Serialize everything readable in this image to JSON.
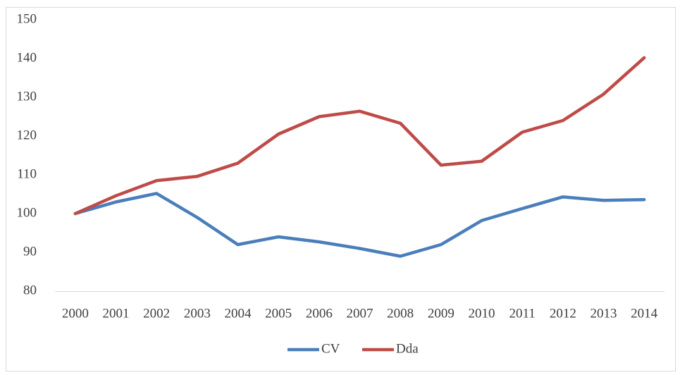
{
  "chart_data": {
    "type": "line",
    "categories": [
      "2000",
      "2001",
      "2002",
      "2003",
      "2004",
      "2005",
      "2006",
      "2007",
      "2008",
      "2009",
      "2010",
      "2011",
      "2012",
      "2013",
      "2014"
    ],
    "series": [
      {
        "name": "CV",
        "color": "#4a7ebb",
        "values": [
          100,
          103,
          105.2,
          99,
          92,
          94,
          92.7,
          91,
          89,
          92,
          98.2,
          101.3,
          104.3,
          103.4,
          103.6
        ]
      },
      {
        "name": "Dda",
        "color": "#be4b48",
        "values": [
          100,
          104.6,
          108.5,
          109.6,
          113,
          120.5,
          125,
          126.4,
          123.3,
          112.5,
          113.5,
          121,
          124,
          130.8,
          140.2
        ]
      }
    ],
    "ylim": [
      80,
      150
    ],
    "yticks": [
      80,
      90,
      100,
      110,
      120,
      130,
      140,
      150
    ],
    "grid": false,
    "legend": "bottom"
  }
}
